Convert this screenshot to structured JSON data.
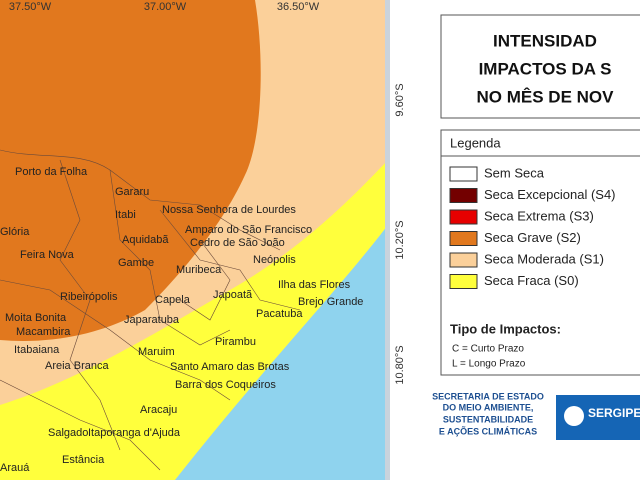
{
  "map": {
    "lon_labels": [
      "37.50°W",
      "37.00°W",
      "36.50°W"
    ],
    "lat_labels": [
      "9.60°S",
      "10.20°S",
      "10.80°S"
    ],
    "places": [
      "Porto da Folha",
      "Gararu",
      "Itabi",
      "Nossa Senhora de Lourdes",
      "Amparo do São Francisco",
      "Cedro de São João",
      "Glória",
      "Aquidabã",
      "Neópolis",
      "Feira Nova",
      "Gambe",
      "Muribeca",
      "Ilha das Flores",
      "Brejo Grande",
      "Ribeirópolis",
      "Capela",
      "Japoatã",
      "Pacatuba",
      "Moita Bonita",
      "Macambira",
      "Japaratuba",
      "Itabaiana",
      "Maruim",
      "Pirambu",
      "Areia Branca",
      "Santo Amaro das Brotas",
      "Barra dos Coqueiros",
      "Aracaju",
      "Salgado",
      "Itaporanga d'Ajuda",
      "Estância",
      "Arauá"
    ]
  },
  "header": {
    "title_lines": [
      "INTENSIDAD",
      "IMPACTOS DA S",
      "NO MÊS DE NOV"
    ]
  },
  "legend": {
    "title": "Legenda",
    "items": [
      {
        "label": "Sem Seca",
        "color": "#ffffff"
      },
      {
        "label": "Seca Excepcional (S4)",
        "color": "#730000"
      },
      {
        "label": "Seca Extrema (S3)",
        "color": "#e60000"
      },
      {
        "label": "Seca Grave (S2)",
        "color": "#e1781e"
      },
      {
        "label": "Seca Moderada (S1)",
        "color": "#fbd09a"
      },
      {
        "label": "Seca Fraca (S0)",
        "color": "#ffff3c"
      }
    ],
    "impact_title": "Tipo de Impactos:",
    "impacts": [
      "C = Curto Prazo",
      "L = Longo Prazo"
    ]
  },
  "footer": {
    "agency_lines": [
      "SECRETARIA DE ESTADO",
      "DO MEIO AMBIENTE,",
      "SUSTENTABILIDADE",
      "E AÇÕES CLIMÁTICAS"
    ],
    "logo": "SERGIPE"
  }
}
